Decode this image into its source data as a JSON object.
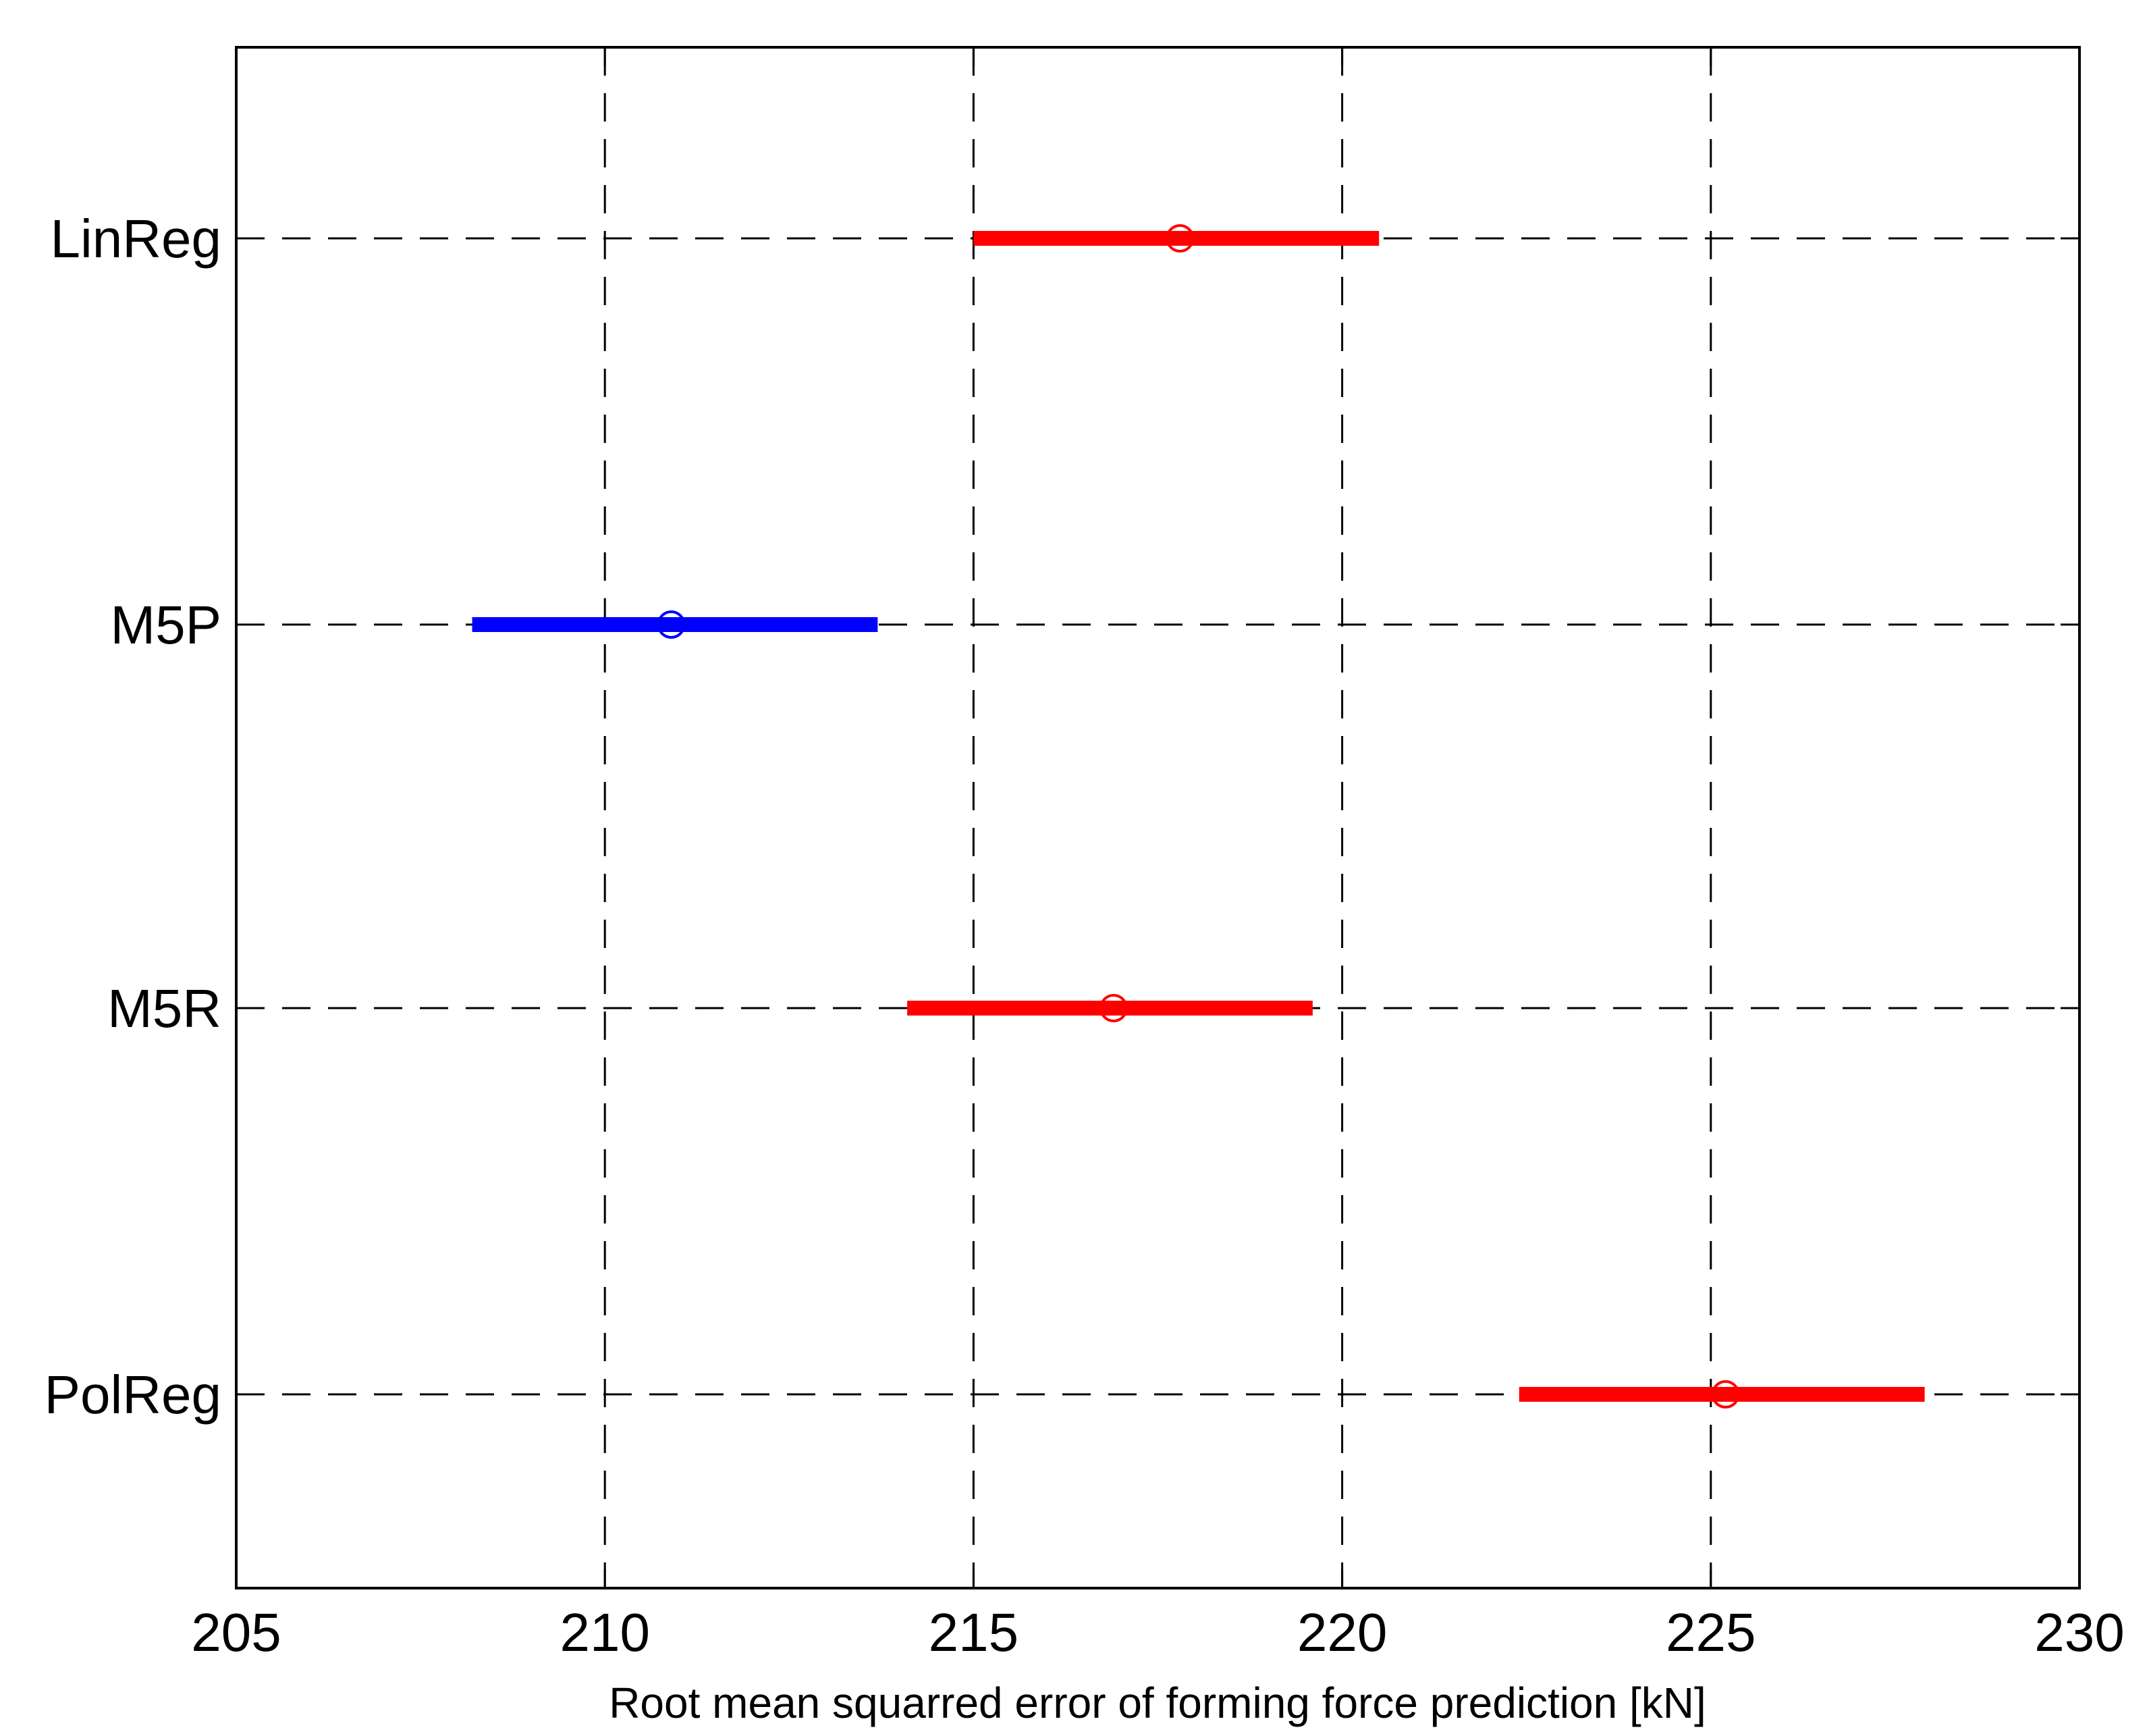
{
  "chart_data": {
    "type": "errorbar",
    "xlabel": "Root mean squarred error of forming force prediction [kN]",
    "xlim": [
      205,
      230
    ],
    "xticks": [
      "205",
      "210",
      "215",
      "220",
      "225",
      "230"
    ],
    "grid": true,
    "categories": [
      "LinReg",
      "M5P",
      "M5R",
      "PolReg"
    ],
    "series": [
      {
        "category": "LinReg",
        "mean": 217.8,
        "low": 215.0,
        "high": 220.5,
        "color": "#ff0000"
      },
      {
        "category": "M5P",
        "mean": 210.9,
        "low": 208.2,
        "high": 213.7,
        "color": "#0000ff"
      },
      {
        "category": "M5R",
        "mean": 216.9,
        "low": 214.1,
        "high": 219.6,
        "color": "#ff0000"
      },
      {
        "category": "PolReg",
        "mean": 225.2,
        "low": 222.4,
        "high": 227.9,
        "color": "#ff0000"
      }
    ]
  }
}
